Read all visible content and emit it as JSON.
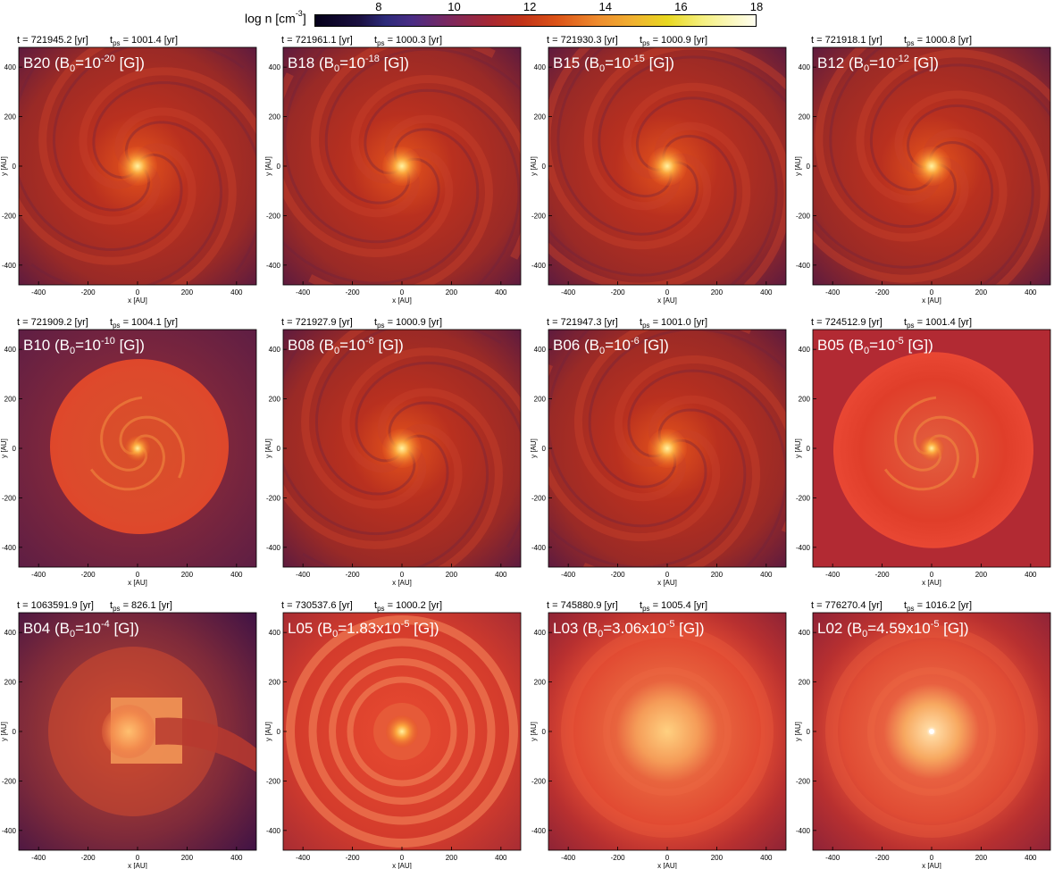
{
  "colorbar": {
    "label": "log n [cm",
    "label_exp": "-3",
    "label_close": "]",
    "ticks": [
      "8",
      "10",
      "12",
      "14",
      "16",
      "18"
    ],
    "tick_values": [
      8,
      10,
      12,
      14,
      16,
      18
    ],
    "range": [
      6.3,
      18
    ]
  },
  "axis": {
    "xlabel": "x [AU]",
    "ylabel": "y [AU]",
    "ticks": [
      "-400",
      "-200",
      "0",
      "200",
      "400"
    ],
    "tick_values": [
      -400,
      -200,
      0,
      200,
      400
    ],
    "range": [
      -480,
      480
    ]
  },
  "panels": [
    {
      "id": "B20",
      "time": "t = 721945.2 [yr]",
      "tps": "1001.4 [yr]",
      "label_pre": "B20 (B",
      "label_mid": "=10",
      "label_exp": "-20",
      "label_post": " [G])",
      "style": "spiral"
    },
    {
      "id": "B18",
      "time": "t = 721961.1 [yr]",
      "tps": "1000.3 [yr]",
      "label_pre": "B18 (B",
      "label_mid": "=10",
      "label_exp": "-18",
      "label_post": " [G])",
      "style": "spiral"
    },
    {
      "id": "B15",
      "time": "t = 721930.3 [yr]",
      "tps": "1000.9 [yr]",
      "label_pre": "B15 (B",
      "label_mid": "=10",
      "label_exp": "-15",
      "label_post": " [G])",
      "style": "spiral"
    },
    {
      "id": "B12",
      "time": "t = 721918.1 [yr]",
      "tps": "1000.8 [yr]",
      "label_pre": "B12 (B",
      "label_mid": "=10",
      "label_exp": "-12",
      "label_post": " [G])",
      "style": "spiral"
    },
    {
      "id": "B10",
      "time": "t = 721909.2 [yr]",
      "tps": "1004.1 [yr]",
      "label_pre": "B10 (B",
      "label_mid": "=10",
      "label_exp": "-10",
      "label_post": " [G])",
      "style": "bubble"
    },
    {
      "id": "B08",
      "time": "t = 721927.9 [yr]",
      "tps": "1000.9 [yr]",
      "label_pre": "B08 (B",
      "label_mid": "=10",
      "label_exp": "-8",
      "label_post": " [G])",
      "style": "spiral"
    },
    {
      "id": "B06",
      "time": "t = 721947.3 [yr]",
      "tps": "1001.0 [yr]",
      "label_pre": "B06 (B",
      "label_mid": "=10",
      "label_exp": "-6",
      "label_post": " [G])",
      "style": "spiral"
    },
    {
      "id": "B05",
      "time": "t = 724512.9 [yr]",
      "tps": "1001.4 [yr]",
      "label_pre": "B05 (B",
      "label_mid": "=10",
      "label_exp": "-5",
      "label_post": " [G])",
      "style": "bubble-bright"
    },
    {
      "id": "B04",
      "time": "t = 1063591.9 [yr]",
      "tps": "826.1 [yr]",
      "label_pre": "B04 (B",
      "label_mid": "=10",
      "label_exp": "-4",
      "label_post": " [G])",
      "style": "jet"
    },
    {
      "id": "L05",
      "time": "t = 730537.6 [yr]",
      "tps": "1000.2 [yr]",
      "label_pre": "L05  (B",
      "label_mid": "=1.83x10",
      "label_exp": "-5",
      "label_post": " [G])",
      "style": "rings"
    },
    {
      "id": "L03",
      "time": "t = 745880.9 [yr]",
      "tps": "1005.4 [yr]",
      "label_pre": "L03  (B",
      "label_mid": "=3.06x10",
      "label_exp": "-5",
      "label_post": " [G])",
      "style": "smooth"
    },
    {
      "id": "L02",
      "time": "t = 776270.4 [yr]",
      "tps": "1016.2 [yr]",
      "label_pre": "L02  (B",
      "label_mid": "=4.59x10",
      "label_exp": "-5",
      "label_post": " [G])",
      "style": "smooth-core"
    }
  ]
}
